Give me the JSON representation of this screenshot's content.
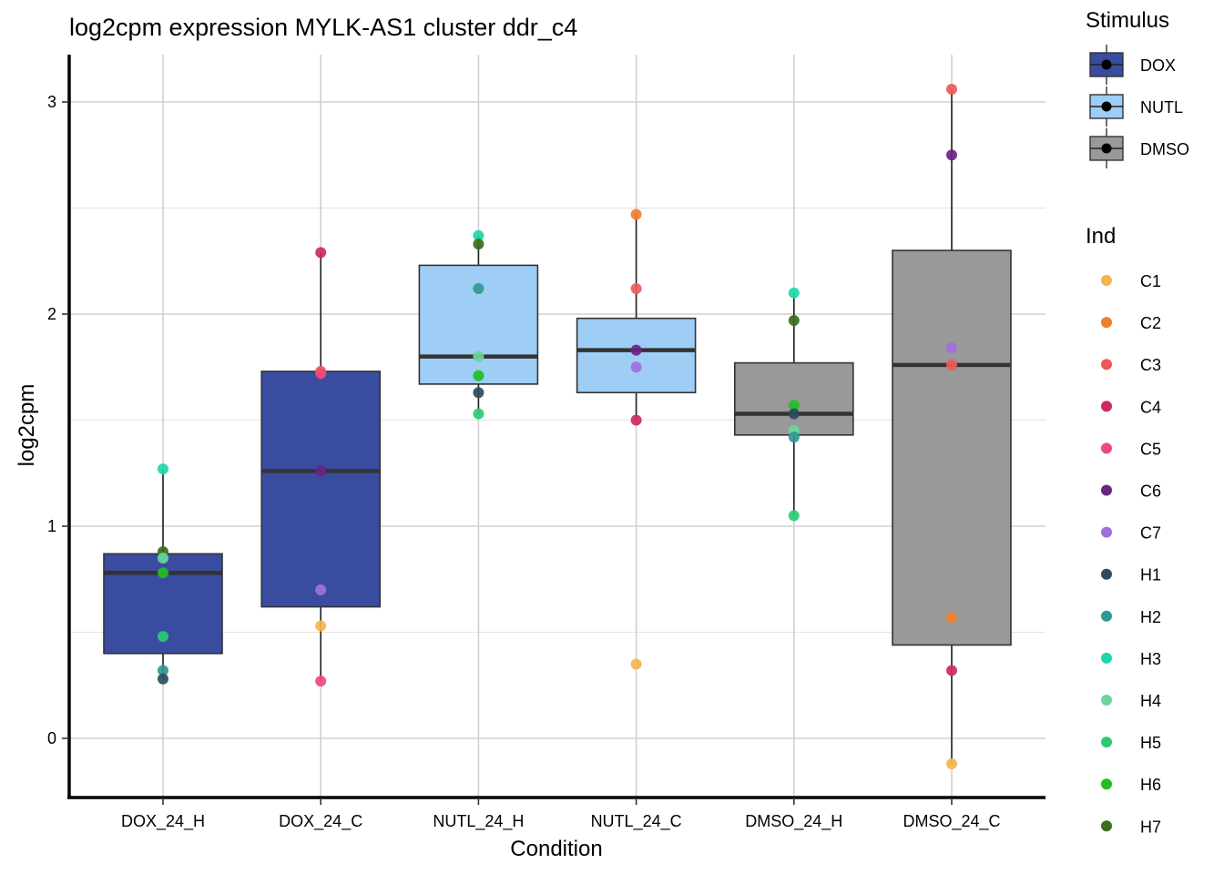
{
  "chart_data": {
    "type": "boxplot",
    "title": "log2cpm expression MYLK-AS1 cluster ddr_c4",
    "xlabel": "Condition",
    "ylabel": "log2cpm",
    "ylim": [
      -0.27,
      3.22
    ],
    "yticks": [
      0,
      1,
      2,
      3
    ],
    "categories": [
      "DOX_24_H",
      "DOX_24_C",
      "NUTL_24_H",
      "NUTL_24_C",
      "DMSO_24_H",
      "DMSO_24_C"
    ],
    "stimulus_of_category": [
      "DOX",
      "DOX",
      "NUTL",
      "NUTL",
      "DMSO",
      "DMSO"
    ],
    "boxes": [
      {
        "q1": 0.4,
        "median": 0.78,
        "q3": 0.87,
        "whisker_low": 0.28,
        "whisker_high": 1.27
      },
      {
        "q1": 0.62,
        "median": 1.26,
        "q3": 1.73,
        "whisker_low": 0.27,
        "whisker_high": 2.29
      },
      {
        "q1": 1.67,
        "median": 1.8,
        "q3": 2.23,
        "whisker_low": 1.53,
        "whisker_high": 2.37
      },
      {
        "q1": 1.63,
        "median": 1.83,
        "q3": 1.98,
        "whisker_low": 1.5,
        "whisker_high": 2.47
      },
      {
        "q1": 1.43,
        "median": 1.53,
        "q3": 1.77,
        "whisker_low": 1.05,
        "whisker_high": 2.1
      },
      {
        "q1": 0.44,
        "median": 1.76,
        "q3": 2.3,
        "whisker_low": -0.12,
        "whisker_high": 3.06
      }
    ],
    "points": [
      {
        "category": "DOX_24_H",
        "ind": "H3",
        "value": 1.27
      },
      {
        "category": "DOX_24_H",
        "ind": "H7",
        "value": 0.88
      },
      {
        "category": "DOX_24_H",
        "ind": "H4",
        "value": 0.85
      },
      {
        "category": "DOX_24_H",
        "ind": "H6",
        "value": 0.78
      },
      {
        "category": "DOX_24_H",
        "ind": "H5",
        "value": 0.48
      },
      {
        "category": "DOX_24_H",
        "ind": "H2",
        "value": 0.32
      },
      {
        "category": "DOX_24_H",
        "ind": "H1",
        "value": 0.28
      },
      {
        "category": "DOX_24_C",
        "ind": "C4",
        "value": 2.29
      },
      {
        "category": "DOX_24_C",
        "ind": "C3",
        "value": 1.73
      },
      {
        "category": "DOX_24_C",
        "ind": "C5",
        "value": 1.72
      },
      {
        "category": "DOX_24_C",
        "ind": "C6",
        "value": 1.26
      },
      {
        "category": "DOX_24_C",
        "ind": "C7",
        "value": 0.7
      },
      {
        "category": "DOX_24_C",
        "ind": "C1",
        "value": 0.53
      },
      {
        "category": "DOX_24_C",
        "ind": "C5",
        "value": 0.27
      },
      {
        "category": "NUTL_24_H",
        "ind": "H3",
        "value": 2.37
      },
      {
        "category": "NUTL_24_H",
        "ind": "H7",
        "value": 2.33
      },
      {
        "category": "NUTL_24_H",
        "ind": "H2",
        "value": 2.12
      },
      {
        "category": "NUTL_24_H",
        "ind": "H4",
        "value": 1.8
      },
      {
        "category": "NUTL_24_H",
        "ind": "H6",
        "value": 1.71
      },
      {
        "category": "NUTL_24_H",
        "ind": "H1",
        "value": 1.63
      },
      {
        "category": "NUTL_24_H",
        "ind": "H5",
        "value": 1.53
      },
      {
        "category": "NUTL_24_C",
        "ind": "C2",
        "value": 2.47
      },
      {
        "category": "NUTL_24_C",
        "ind": "C3",
        "value": 2.12
      },
      {
        "category": "NUTL_24_C",
        "ind": "C6",
        "value": 1.83
      },
      {
        "category": "NUTL_24_C",
        "ind": "C7",
        "value": 1.75
      },
      {
        "category": "NUTL_24_C",
        "ind": "C4",
        "value": 1.5
      },
      {
        "category": "NUTL_24_C",
        "ind": "C1",
        "value": 0.35
      },
      {
        "category": "DMSO_24_H",
        "ind": "H3",
        "value": 2.1
      },
      {
        "category": "DMSO_24_H",
        "ind": "H7",
        "value": 1.97
      },
      {
        "category": "DMSO_24_H",
        "ind": "H6",
        "value": 1.57
      },
      {
        "category": "DMSO_24_H",
        "ind": "H1",
        "value": 1.53
      },
      {
        "category": "DMSO_24_H",
        "ind": "H4",
        "value": 1.45
      },
      {
        "category": "DMSO_24_H",
        "ind": "H2",
        "value": 1.42
      },
      {
        "category": "DMSO_24_H",
        "ind": "H5",
        "value": 1.05
      },
      {
        "category": "DMSO_24_C",
        "ind": "C3",
        "value": 3.06
      },
      {
        "category": "DMSO_24_C",
        "ind": "C6",
        "value": 2.75
      },
      {
        "category": "DMSO_24_C",
        "ind": "C7",
        "value": 1.84
      },
      {
        "category": "DMSO_24_C",
        "ind": "C3",
        "value": 1.76
      },
      {
        "category": "DMSO_24_C",
        "ind": "C2",
        "value": 0.57
      },
      {
        "category": "DMSO_24_C",
        "ind": "C4",
        "value": 0.32
      },
      {
        "category": "DMSO_24_C",
        "ind": "C1",
        "value": -0.12
      }
    ],
    "legend_stimulus": {
      "title": "Stimulus",
      "items": [
        {
          "label": "DOX",
          "color": "#3a4ca0"
        },
        {
          "label": "NUTL",
          "color": "#9ecdf5"
        },
        {
          "label": "DMSO",
          "color": "#999999"
        }
      ]
    },
    "legend_ind": {
      "title": "Ind",
      "items": [
        {
          "label": "C1",
          "color": "#f5b44e"
        },
        {
          "label": "C2",
          "color": "#f07f2a"
        },
        {
          "label": "C3",
          "color": "#ee5a5a"
        },
        {
          "label": "C4",
          "color": "#cc2a60"
        },
        {
          "label": "C5",
          "color": "#ee4a78"
        },
        {
          "label": "C6",
          "color": "#6a2482"
        },
        {
          "label": "C7",
          "color": "#a46fdc"
        },
        {
          "label": "H1",
          "color": "#2e4a60"
        },
        {
          "label": "H2",
          "color": "#2e9990"
        },
        {
          "label": "H3",
          "color": "#1ed6a8"
        },
        {
          "label": "H4",
          "color": "#6ad69c"
        },
        {
          "label": "H5",
          "color": "#2acb72"
        },
        {
          "label": "H6",
          "color": "#1fbf1f"
        },
        {
          "label": "H7",
          "color": "#3a6e20"
        }
      ]
    }
  }
}
